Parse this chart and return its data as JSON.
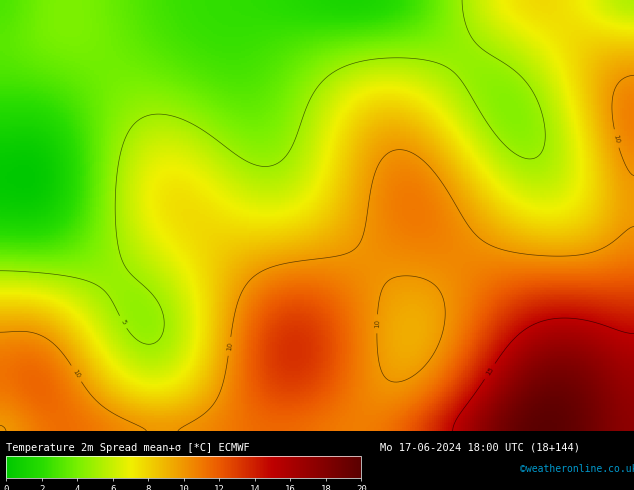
{
  "title_text": "Temperature 2m Spread mean+σ [*C] ECMWF",
  "date_text": "Mo 17-06-2024 18:00 UTC (18+144)",
  "colorbar_label": "",
  "colorbar_ticks": [
    0,
    2,
    4,
    6,
    8,
    10,
    12,
    14,
    16,
    18,
    20
  ],
  "colorbar_vmin": 0,
  "colorbar_vmax": 20,
  "credit_text": "©weatheronline.co.uk",
  "credit_color": "#0099CC",
  "bottom_bar_bg": "#000000",
  "bottom_text_color": "#ffffff",
  "fig_width": 6.34,
  "fig_height": 4.9,
  "map_colors": [
    "#00c800",
    "#14d200",
    "#28dc00",
    "#50e600",
    "#78f000",
    "#a0f000",
    "#c8f000",
    "#f0f000",
    "#f0d200",
    "#f0b400",
    "#f09600",
    "#f07800",
    "#eb5a00",
    "#dc3c00",
    "#cd1e00",
    "#be0000",
    "#aa0000",
    "#960000",
    "#820000",
    "#6e0000"
  ],
  "colormap_colors": [
    [
      0.0,
      "#00c800"
    ],
    [
      0.05,
      "#14d200"
    ],
    [
      0.1,
      "#28dc00"
    ],
    [
      0.15,
      "#50e600"
    ],
    [
      0.2,
      "#78f000"
    ],
    [
      0.25,
      "#a0f000"
    ],
    [
      0.3,
      "#c8f000"
    ],
    [
      0.35,
      "#f0f000"
    ],
    [
      0.4,
      "#f0d200"
    ],
    [
      0.45,
      "#f0b400"
    ],
    [
      0.5,
      "#f09600"
    ],
    [
      0.55,
      "#f07800"
    ],
    [
      0.6,
      "#eb5a00"
    ],
    [
      0.65,
      "#dc3c00"
    ],
    [
      0.7,
      "#cd1e00"
    ],
    [
      0.75,
      "#be0000"
    ],
    [
      0.8,
      "#aa0000"
    ],
    [
      0.85,
      "#960000"
    ],
    [
      0.9,
      "#820000"
    ],
    [
      0.95,
      "#6e0000"
    ],
    [
      1.0,
      "#5a0000"
    ]
  ]
}
